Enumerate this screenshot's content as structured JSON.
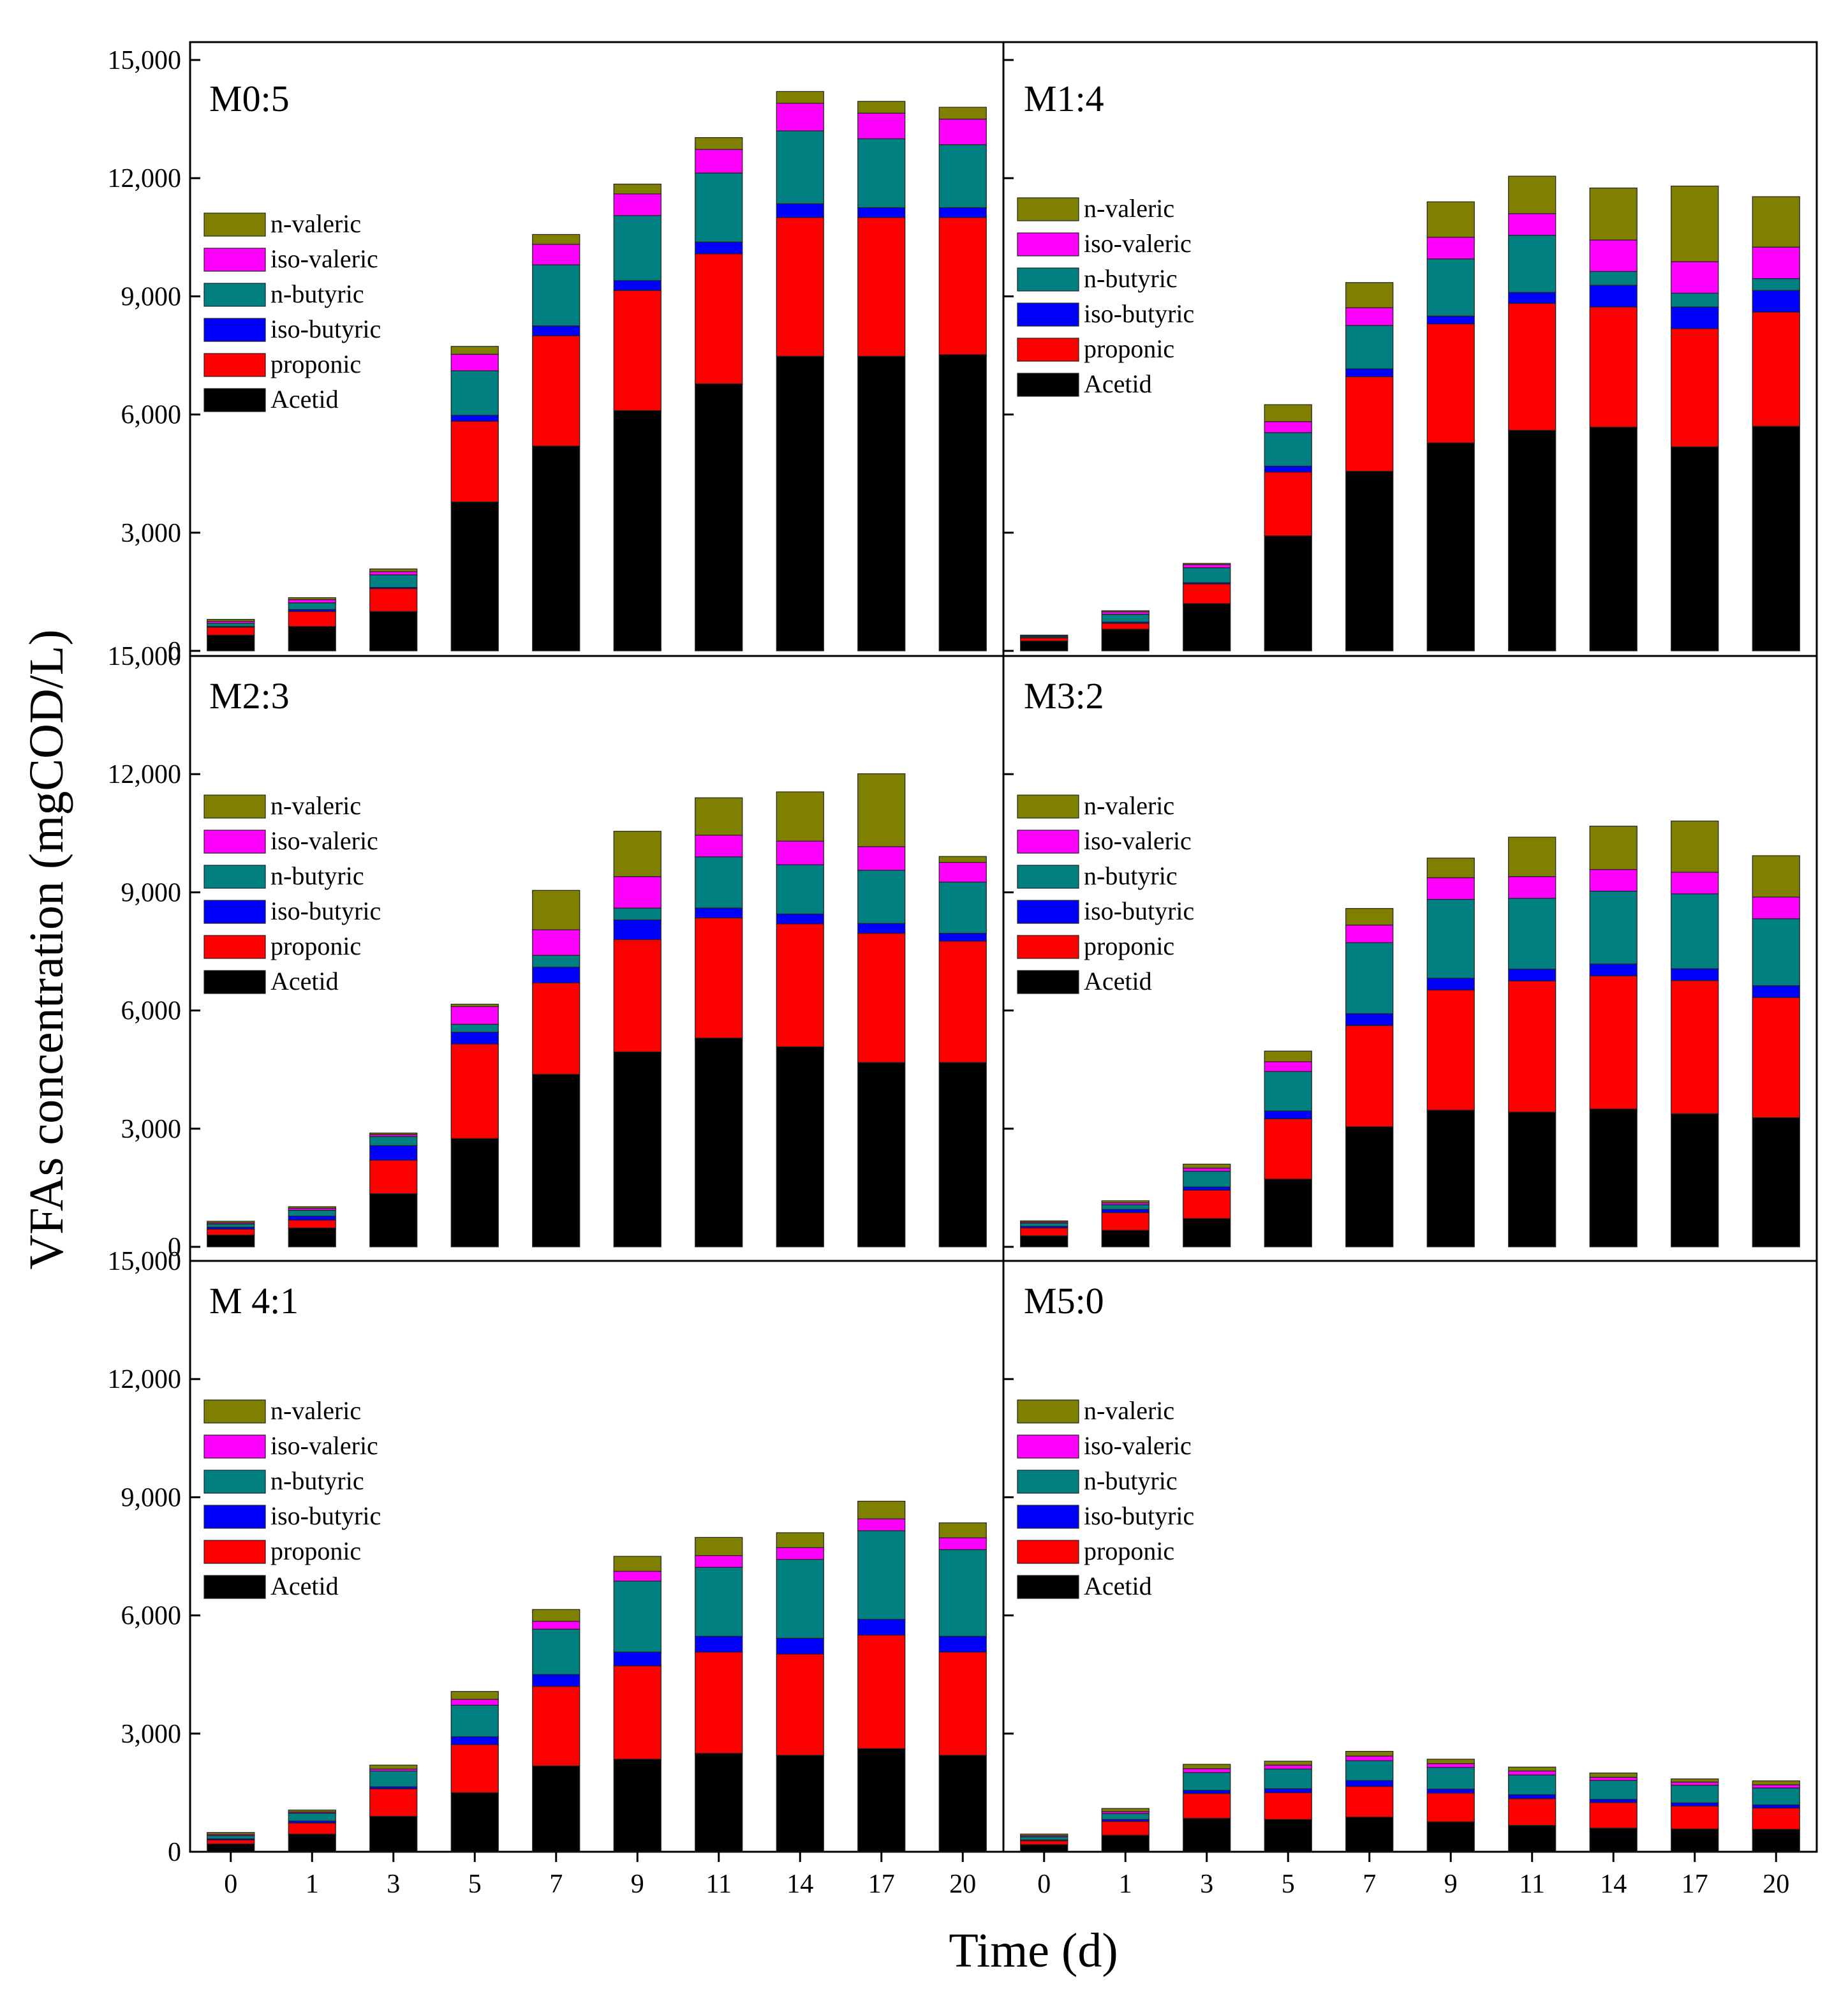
{
  "figure": {
    "y_axis_label": "VFAs concentration (mgCOD/L)",
    "x_axis_label": "Time (d)",
    "y_ticks": [
      0,
      3000,
      6000,
      9000,
      12000,
      15000
    ],
    "y_tick_labels": [
      "0",
      "3,000",
      "6,000",
      "9,000",
      "12,000",
      "15,000"
    ],
    "x_tick_labels": [
      "0",
      "1",
      "3",
      "5",
      "7",
      "9",
      "11",
      "14",
      "17",
      "20"
    ],
    "legend_entries": [
      "n-valeric",
      "iso-valeric",
      "n-butyric",
      "iso-butyric",
      "proponic",
      "Acetid"
    ],
    "colors": {
      "Acetid": "#000000",
      "proponic": "#ff0000",
      "iso-butyric": "#0000ff",
      "n-butyric": "#008080",
      "iso-valeric": "#ff00ff",
      "n-valeric": "#808000"
    }
  },
  "chart_data": [
    {
      "type": "bar",
      "stacked": true,
      "title": "M0:5",
      "xlabel": "Time (d)",
      "ylabel": "VFAs concentration (mgCOD/L)",
      "ylim": [
        0,
        15000
      ],
      "legend_position": "left",
      "categories": [
        "0",
        "1",
        "3",
        "5",
        "7",
        "9",
        "11",
        "14",
        "17",
        "20"
      ],
      "series": [
        {
          "name": "Acetid",
          "values": [
            400,
            620,
            1000,
            3780,
            5200,
            6100,
            6780,
            7480,
            7480,
            7520
          ]
        },
        {
          "name": "proponic",
          "values": [
            200,
            380,
            580,
            2050,
            2800,
            3050,
            3300,
            3520,
            3520,
            3480
          ]
        },
        {
          "name": "iso-butyric",
          "values": [
            20,
            50,
            30,
            150,
            250,
            250,
            300,
            350,
            250,
            250
          ]
        },
        {
          "name": "n-butyric",
          "values": [
            80,
            170,
            320,
            1130,
            1550,
            1650,
            1750,
            1850,
            1750,
            1600
          ]
        },
        {
          "name": "iso-valeric",
          "values": [
            50,
            80,
            80,
            420,
            520,
            550,
            600,
            700,
            650,
            650
          ]
        },
        {
          "name": "n-valeric",
          "values": [
            50,
            50,
            70,
            200,
            250,
            250,
            300,
            300,
            300,
            300
          ]
        }
      ]
    },
    {
      "type": "bar",
      "stacked": true,
      "title": "M1:4",
      "xlabel": "Time (d)",
      "ylabel": "VFAs concentration (mgCOD/L)",
      "ylim": [
        0,
        15000
      ],
      "legend_position": "left",
      "categories": [
        "0",
        "1",
        "3",
        "5",
        "7",
        "9",
        "11",
        "14",
        "17",
        "20"
      ],
      "series": [
        {
          "name": "Acetid",
          "values": [
            250,
            550,
            1200,
            2920,
            4560,
            5280,
            5600,
            5680,
            5180,
            5700
          ]
        },
        {
          "name": "proponic",
          "values": [
            80,
            150,
            500,
            1620,
            2400,
            3020,
            3220,
            3050,
            3000,
            2900
          ]
        },
        {
          "name": "iso-butyric",
          "values": [
            10,
            30,
            30,
            150,
            200,
            200,
            280,
            550,
            550,
            550
          ]
        },
        {
          "name": "n-butyric",
          "values": [
            30,
            200,
            380,
            850,
            1100,
            1450,
            1450,
            350,
            350,
            300
          ]
        },
        {
          "name": "iso-valeric",
          "values": [
            20,
            60,
            80,
            280,
            450,
            550,
            550,
            800,
            800,
            800
          ]
        },
        {
          "name": "n-valeric",
          "values": [
            10,
            30,
            30,
            430,
            640,
            900,
            950,
            1320,
            1920,
            1280
          ]
        }
      ]
    },
    {
      "type": "bar",
      "stacked": true,
      "title": "M2:3",
      "xlabel": "Time (d)",
      "ylabel": "VFAs concentration (mgCOD/L)",
      "ylim": [
        0,
        15000
      ],
      "legend_position": "left",
      "categories": [
        "0",
        "1",
        "3",
        "5",
        "7",
        "9",
        "11",
        "14",
        "17",
        "20"
      ],
      "series": [
        {
          "name": "Acetid",
          "values": [
            300,
            480,
            1350,
            2750,
            4380,
            4950,
            5300,
            5080,
            4680,
            4680
          ]
        },
        {
          "name": "proponic",
          "values": [
            150,
            200,
            850,
            2400,
            2320,
            2850,
            3050,
            3120,
            3280,
            3080
          ]
        },
        {
          "name": "iso-butyric",
          "values": [
            50,
            100,
            370,
            300,
            400,
            500,
            250,
            250,
            250,
            200
          ]
        },
        {
          "name": "n-butyric",
          "values": [
            80,
            150,
            230,
            200,
            300,
            300,
            1300,
            1250,
            1350,
            1300
          ]
        },
        {
          "name": "iso-valeric",
          "values": [
            30,
            50,
            50,
            450,
            650,
            800,
            550,
            600,
            600,
            500
          ]
        },
        {
          "name": "n-valeric",
          "values": [
            40,
            40,
            40,
            60,
            1000,
            1150,
            950,
            1250,
            1850,
            150
          ]
        }
      ]
    },
    {
      "type": "bar",
      "stacked": true,
      "title": "M3:2",
      "xlabel": "Time (d)",
      "ylabel": "VFAs concentration (mgCOD/L)",
      "ylim": [
        0,
        15000
      ],
      "legend_position": "left",
      "categories": [
        "0",
        "1",
        "3",
        "5",
        "7",
        "9",
        "11",
        "14",
        "17",
        "20"
      ],
      "series": [
        {
          "name": "Acetid",
          "values": [
            280,
            420,
            720,
            1720,
            3050,
            3470,
            3420,
            3500,
            3380,
            3280
          ]
        },
        {
          "name": "proponic",
          "values": [
            200,
            450,
            720,
            1530,
            2570,
            3050,
            3330,
            3380,
            3380,
            3050
          ]
        },
        {
          "name": "iso-butyric",
          "values": [
            40,
            80,
            80,
            200,
            300,
            300,
            300,
            300,
            300,
            300
          ]
        },
        {
          "name": "n-butyric",
          "values": [
            80,
            120,
            400,
            1000,
            1800,
            2000,
            1800,
            1850,
            1900,
            1700
          ]
        },
        {
          "name": "iso-valeric",
          "values": [
            30,
            50,
            80,
            250,
            450,
            550,
            550,
            550,
            550,
            550
          ]
        },
        {
          "name": "n-valeric",
          "values": [
            30,
            50,
            100,
            270,
            420,
            500,
            1000,
            1100,
            1300,
            1050
          ]
        }
      ]
    },
    {
      "type": "bar",
      "stacked": true,
      "title": "M 4:1",
      "xlabel": "Time (d)",
      "ylabel": "VFAs concentration (mgCOD/L)",
      "ylim": [
        0,
        15000
      ],
      "legend_position": "left",
      "categories": [
        "0",
        "1",
        "3",
        "5",
        "7",
        "9",
        "11",
        "14",
        "17",
        "20"
      ],
      "series": [
        {
          "name": "Acetid",
          "values": [
            200,
            450,
            900,
            1500,
            2180,
            2350,
            2500,
            2450,
            2620,
            2450
          ]
        },
        {
          "name": "proponic",
          "values": [
            100,
            280,
            700,
            1220,
            2020,
            2370,
            2570,
            2570,
            2880,
            2620
          ]
        },
        {
          "name": "iso-butyric",
          "values": [
            30,
            50,
            50,
            200,
            300,
            350,
            400,
            400,
            400,
            400
          ]
        },
        {
          "name": "n-butyric",
          "values": [
            80,
            200,
            400,
            800,
            1150,
            1800,
            1750,
            2000,
            2250,
            2200
          ]
        },
        {
          "name": "iso-valeric",
          "values": [
            30,
            30,
            50,
            150,
            200,
            250,
            300,
            300,
            300,
            300
          ]
        },
        {
          "name": "n-valeric",
          "values": [
            50,
            50,
            100,
            200,
            300,
            380,
            460,
            380,
            450,
            380
          ]
        }
      ]
    },
    {
      "type": "bar",
      "stacked": true,
      "title": "M5:0",
      "xlabel": "Time (d)",
      "ylabel": "VFAs concentration (mgCOD/L)",
      "ylim": [
        0,
        15000
      ],
      "legend_position": "left",
      "categories": [
        "0",
        "1",
        "3",
        "5",
        "7",
        "9",
        "11",
        "14",
        "17",
        "20"
      ],
      "series": [
        {
          "name": "Acetid",
          "values": [
            180,
            420,
            850,
            820,
            880,
            760,
            670,
            600,
            580,
            570
          ]
        },
        {
          "name": "proponic",
          "values": [
            100,
            350,
            630,
            680,
            780,
            730,
            680,
            650,
            580,
            540
          ]
        },
        {
          "name": "iso-butyric",
          "values": [
            20,
            50,
            80,
            100,
            150,
            100,
            100,
            80,
            80,
            80
          ]
        },
        {
          "name": "n-butyric",
          "values": [
            80,
            150,
            450,
            500,
            500,
            550,
            500,
            480,
            450,
            430
          ]
        },
        {
          "name": "iso-valeric",
          "values": [
            30,
            50,
            100,
            100,
            120,
            100,
            100,
            80,
            80,
            80
          ]
        },
        {
          "name": "n-valeric",
          "values": [
            40,
            80,
            110,
            100,
            120,
            110,
            100,
            110,
            80,
            100
          ]
        }
      ]
    }
  ]
}
